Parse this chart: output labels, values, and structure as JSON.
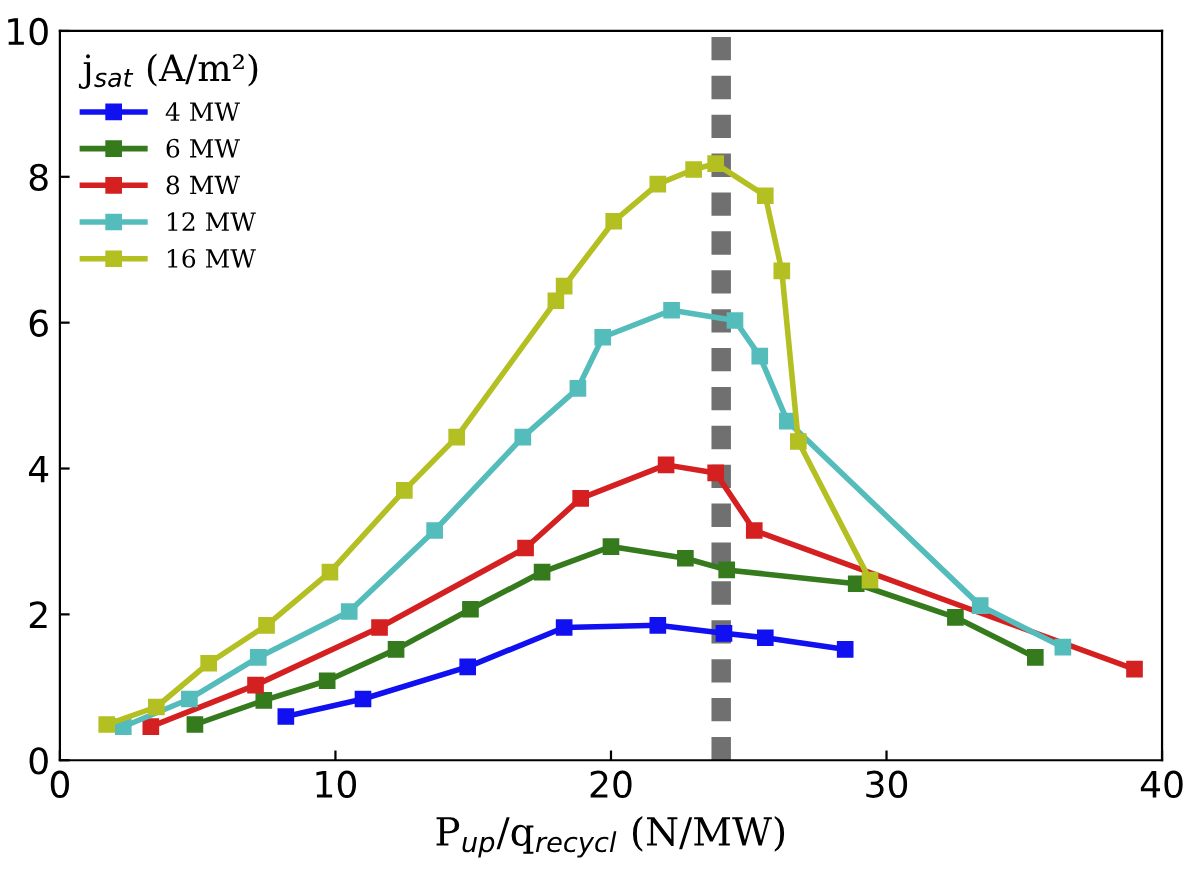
{
  "chart_data": {
    "type": "line",
    "xlabel": "P$_{up}$/q$_{recycl}$ (N/MW)",
    "legend_title": "j$_{sat}$ (A/m²)",
    "legend": "top left",
    "marker": "square",
    "line_style": "solid",
    "grid": false,
    "xlim": [
      0,
      40
    ],
    "xticks": [
      0,
      10,
      20,
      30,
      40
    ],
    "ylim": [
      0,
      10
    ],
    "yticks": [
      0,
      2,
      4,
      6,
      8,
      10
    ],
    "ref_lines": [
      {
        "axis": "x",
        "value": 24,
        "color": "#707070",
        "line_style": "dashed"
      }
    ],
    "series": [
      {
        "name": "4 MW",
        "color": "#1010f0",
        "x": [
          8.2,
          11.0,
          14.8,
          18.3,
          21.7,
          24.1,
          25.6,
          28.5
        ],
        "values": [
          0.6,
          0.84,
          1.28,
          1.82,
          1.85,
          1.74,
          1.68,
          1.52
        ]
      },
      {
        "name": "6 MW",
        "color": "#357a1c",
        "x": [
          4.9,
          7.4,
          9.7,
          12.2,
          14.9,
          17.5,
          20.0,
          22.7,
          24.2,
          28.9,
          32.5,
          35.4
        ],
        "values": [
          0.49,
          0.82,
          1.09,
          1.52,
          2.07,
          2.58,
          2.93,
          2.77,
          2.61,
          2.42,
          1.96,
          1.41
        ]
      },
      {
        "name": "8 MW",
        "color": "#d42020",
        "x": [
          3.3,
          7.1,
          11.6,
          16.9,
          18.9,
          22.0,
          23.8,
          25.2,
          39.0
        ],
        "values": [
          0.46,
          1.03,
          1.82,
          2.91,
          3.59,
          4.05,
          3.94,
          3.15,
          1.25
        ]
      },
      {
        "name": "12 MW",
        "color": "#55bcbc",
        "x": [
          2.3,
          4.7,
          7.2,
          10.5,
          13.6,
          16.8,
          18.8,
          19.7,
          22.2,
          24.5,
          25.4,
          26.4,
          33.4,
          36.4
        ],
        "values": [
          0.46,
          0.84,
          1.41,
          2.04,
          3.15,
          4.43,
          5.1,
          5.8,
          6.17,
          6.03,
          5.54,
          4.65,
          2.12,
          1.55
        ]
      },
      {
        "name": "16 MW",
        "color": "#b4bf22",
        "x": [
          1.7,
          3.5,
          5.4,
          7.5,
          9.8,
          12.5,
          14.4,
          18.0,
          18.3,
          20.1,
          21.7,
          23.0,
          23.8,
          25.6,
          26.2,
          26.8,
          29.4
        ],
        "values": [
          0.49,
          0.73,
          1.33,
          1.85,
          2.58,
          3.7,
          4.43,
          6.3,
          6.5,
          7.39,
          7.9,
          8.1,
          8.18,
          7.74,
          6.71,
          4.37,
          2.47
        ]
      }
    ]
  }
}
